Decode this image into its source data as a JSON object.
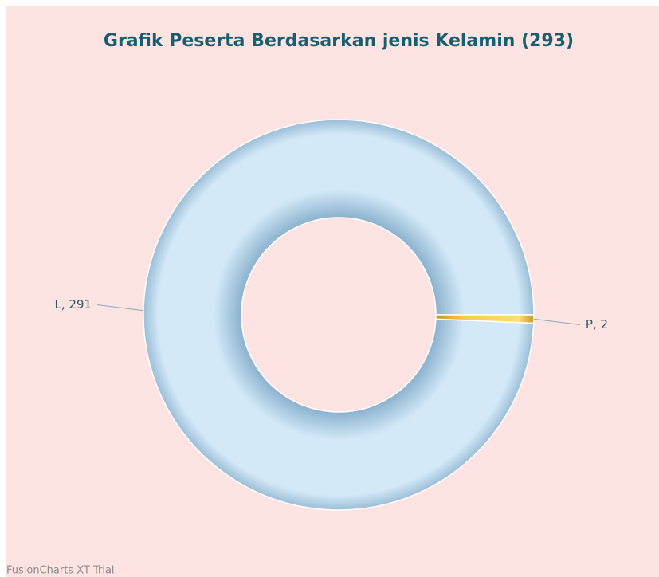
{
  "chart_data": {
    "type": "doughnut",
    "title": "Grafik Peserta Berdasarkan jenis Kelamin (293)",
    "values": [
      291,
      2
    ],
    "value_labels": [
      "L, 291",
      "P, 2"
    ],
    "colors": [
      "#d3e9f8",
      "#f5cd4a"
    ],
    "watermark": "FusionCharts XT Trial"
  }
}
